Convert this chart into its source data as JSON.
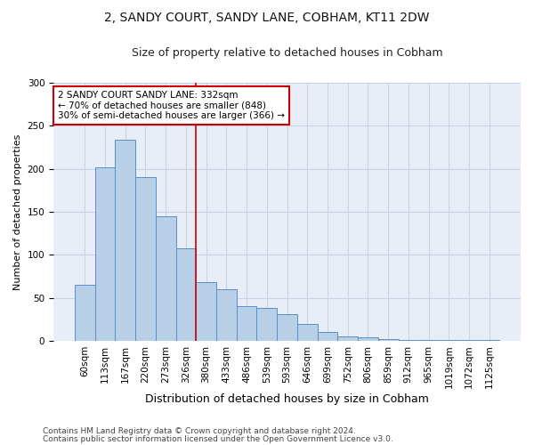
{
  "title1": "2, SANDY COURT, SANDY LANE, COBHAM, KT11 2DW",
  "title2": "Size of property relative to detached houses in Cobham",
  "xlabel": "Distribution of detached houses by size in Cobham",
  "ylabel": "Number of detached properties",
  "categories": [
    "60sqm",
    "113sqm",
    "167sqm",
    "220sqm",
    "273sqm",
    "326sqm",
    "380sqm",
    "433sqm",
    "486sqm",
    "539sqm",
    "593sqm",
    "646sqm",
    "699sqm",
    "752sqm",
    "806sqm",
    "859sqm",
    "912sqm",
    "965sqm",
    "1019sqm",
    "1072sqm",
    "1125sqm"
  ],
  "values": [
    65,
    202,
    234,
    190,
    145,
    108,
    68,
    60,
    40,
    38,
    31,
    20,
    10,
    5,
    4,
    2,
    1,
    1,
    1,
    1,
    1
  ],
  "bar_color": "#b8cfe8",
  "bar_edge_color": "#5a8fc4",
  "vline_color": "#cc0000",
  "vline_x": 5.5,
  "annotation_text": "2 SANDY COURT SANDY LANE: 332sqm\n← 70% of detached houses are smaller (848)\n30% of semi-detached houses are larger (366) →",
  "annotation_box_color": "#ffffff",
  "annotation_box_edge_color": "#cc0000",
  "ylim": [
    0,
    300
  ],
  "yticks": [
    0,
    50,
    100,
    150,
    200,
    250,
    300
  ],
  "grid_color": "#c8d4e4",
  "background_color": "#e8eef8",
  "footer1": "Contains HM Land Registry data © Crown copyright and database right 2024.",
  "footer2": "Contains public sector information licensed under the Open Government Licence v3.0.",
  "title_fontsize": 10,
  "subtitle_fontsize": 9,
  "ylabel_fontsize": 8,
  "xlabel_fontsize": 9,
  "tick_fontsize": 7.5,
  "footer_fontsize": 6.5,
  "annot_fontsize": 7.5
}
